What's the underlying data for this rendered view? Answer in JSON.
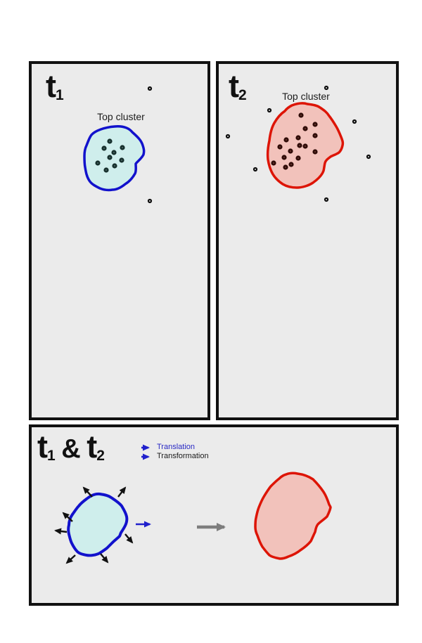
{
  "colors": {
    "panel_bg": "#ebebeb",
    "panel_border": "#111111",
    "blue_outline": "#1212cc",
    "cyan_fill": "#cfeeec",
    "red_outline": "#dd1405",
    "pink_fill": "#f2c2bb",
    "t1_dot": "#17302d",
    "t1_dot_center": "#4d6b66",
    "t2_dot": "#2f0b07",
    "t2_dot_center": "#6b3a32",
    "outlier_dot": "#0d0d0d",
    "outlier_center": "#d9d9d9",
    "transform_arrow": "#111111",
    "translation_arrow": "#2020cc",
    "mapping_arrow": "#7d7d7d"
  },
  "panel_t1": {
    "title_main": "t",
    "title_sub": "1",
    "cluster_label": "Top cluster",
    "cluster_points": [
      [
        111,
        110
      ],
      [
        103,
        120
      ],
      [
        129,
        119
      ],
      [
        117,
        126
      ],
      [
        111,
        133
      ],
      [
        128,
        137
      ],
      [
        94,
        141
      ],
      [
        118,
        145
      ],
      [
        106,
        151
      ]
    ],
    "outlier_points": [
      [
        168,
        35
      ],
      [
        168,
        195
      ]
    ]
  },
  "panel_t2": {
    "title_main": "t",
    "title_sub": "2",
    "cluster_label": "Top cluster",
    "cluster_points": [
      [
        117,
        73
      ],
      [
        137,
        86
      ],
      [
        123,
        92
      ],
      [
        137,
        102
      ],
      [
        113,
        105
      ],
      [
        96,
        108
      ],
      [
        115,
        116
      ],
      [
        123,
        117
      ],
      [
        87,
        118
      ],
      [
        102,
        124
      ],
      [
        137,
        125
      ],
      [
        93,
        133
      ],
      [
        113,
        134
      ],
      [
        78,
        141
      ],
      [
        103,
        143
      ],
      [
        95,
        147
      ]
    ],
    "outlier_points": [
      [
        153,
        34
      ],
      [
        72,
        66
      ],
      [
        13,
        103
      ],
      [
        193,
        82
      ],
      [
        213,
        132
      ],
      [
        52,
        150
      ],
      [
        153,
        193
      ]
    ]
  },
  "panel_combined": {
    "title_t1": "t",
    "title_sub1": "1",
    "title_amp": " & ",
    "title_t2": "t",
    "title_sub2": "2",
    "legend": [
      {
        "label": "Translation",
        "color": "#2929c4"
      },
      {
        "label": "Transformation",
        "color": "#1a1a1a"
      }
    ],
    "transform_arrows": [
      [
        86,
        99,
        74,
        86
      ],
      [
        123,
        99,
        133,
        86
      ],
      [
        58,
        134,
        45,
        122
      ],
      [
        50,
        149,
        34,
        147
      ],
      [
        62,
        182,
        50,
        193
      ],
      [
        98,
        180,
        108,
        192
      ],
      [
        133,
        152,
        143,
        164
      ]
    ],
    "translation_arrow": [
      148,
      138,
      168,
      138
    ],
    "mapping_arrow": [
      235,
      142,
      274,
      142
    ]
  }
}
